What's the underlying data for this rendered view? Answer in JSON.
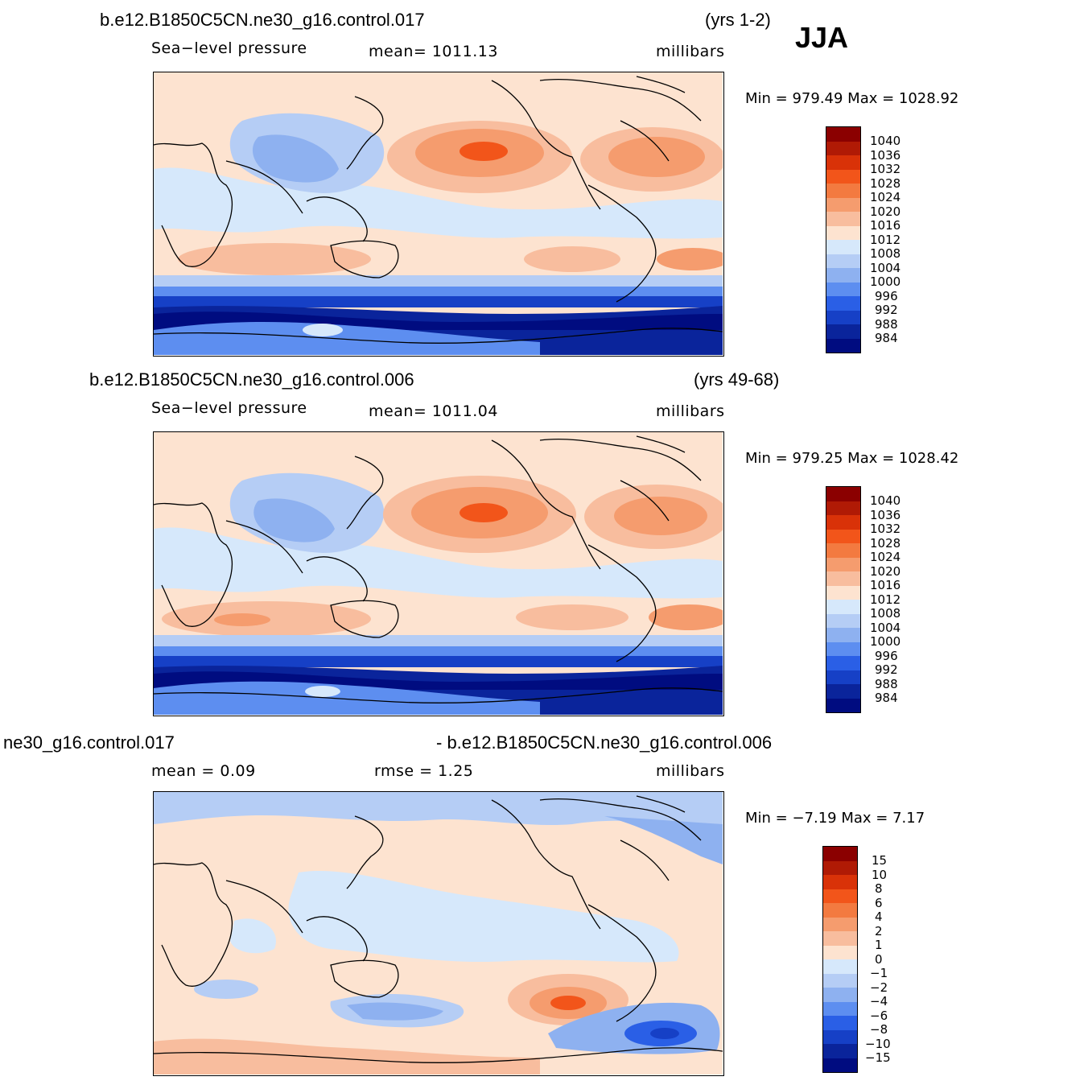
{
  "season": "JJA",
  "chart_data": [
    {
      "type": "heatmap",
      "case_title": "b.e12.B1850C5CN.ne30_g16.control.017",
      "years": "(yrs 1-2)",
      "variable": "Sea−level pressure",
      "mean_label": "mean=  1011.13",
      "units": "millibars",
      "minmax": "Min  =  979.49  Max  =  1028.92",
      "min": 979.49,
      "max": 1028.92,
      "mean": 1011.13,
      "colorbar_levels": [
        "1040",
        "1036",
        "1032",
        "1028",
        "1024",
        "1020",
        "1016",
        "1012",
        "1008",
        "1004",
        "1000",
        "996",
        "992",
        "988",
        "984"
      ]
    },
    {
      "type": "heatmap",
      "case_title": "b.e12.B1850C5CN.ne30_g16.control.006",
      "years": "(yrs 49-68)",
      "variable": "Sea−level pressure",
      "mean_label": "mean=  1011.04",
      "units": "millibars",
      "minmax": "Min  =  979.25  Max  =  1028.42",
      "min": 979.25,
      "max": 1028.42,
      "mean": 1011.04,
      "colorbar_levels": [
        "1040",
        "1036",
        "1032",
        "1028",
        "1024",
        "1020",
        "1016",
        "1012",
        "1008",
        "1004",
        "1000",
        "996",
        "992",
        "988",
        "984"
      ]
    },
    {
      "type": "heatmap",
      "case_title_left": "ne30_g16.control.017",
      "case_title_right": "- b.e12.B1850C5CN.ne30_g16.control.006",
      "mean_text": "mean  =     0.09",
      "rmse_text": "rmse  =     1.25",
      "units": "millibars",
      "minmax": "Min  =    −7.19  Max  =      7.17",
      "min": -7.19,
      "max": 7.17,
      "mean": 0.09,
      "rmse": 1.25,
      "colorbar_levels": [
        "15",
        "10",
        "8",
        "6",
        "4",
        "2",
        "1",
        "0",
        "−1",
        "−2",
        "−4",
        "−6",
        "−8",
        "−10",
        "−15"
      ]
    }
  ],
  "colors": {
    "abs_scale": [
      "#8b0000",
      "#b01a05",
      "#d93208",
      "#f2551a",
      "#f37a40",
      "#f59c6e",
      "#f8bd9e",
      "#fde3d0",
      "#d6e8fb",
      "#b5cdf5",
      "#8eb1f0",
      "#5d8ef0",
      "#2a5fe6",
      "#1640c6",
      "#0a249b",
      "#000c80"
    ],
    "diff_scale": [
      "#8b0000",
      "#b01a05",
      "#d93208",
      "#f2551a",
      "#f37a40",
      "#f59c6e",
      "#f8bd9e",
      "#fde3d0",
      "#d6e8fb",
      "#b5cdf5",
      "#8eb1f0",
      "#5d8ef0",
      "#2a5fe6",
      "#1640c6",
      "#0a249b",
      "#000c80"
    ]
  }
}
